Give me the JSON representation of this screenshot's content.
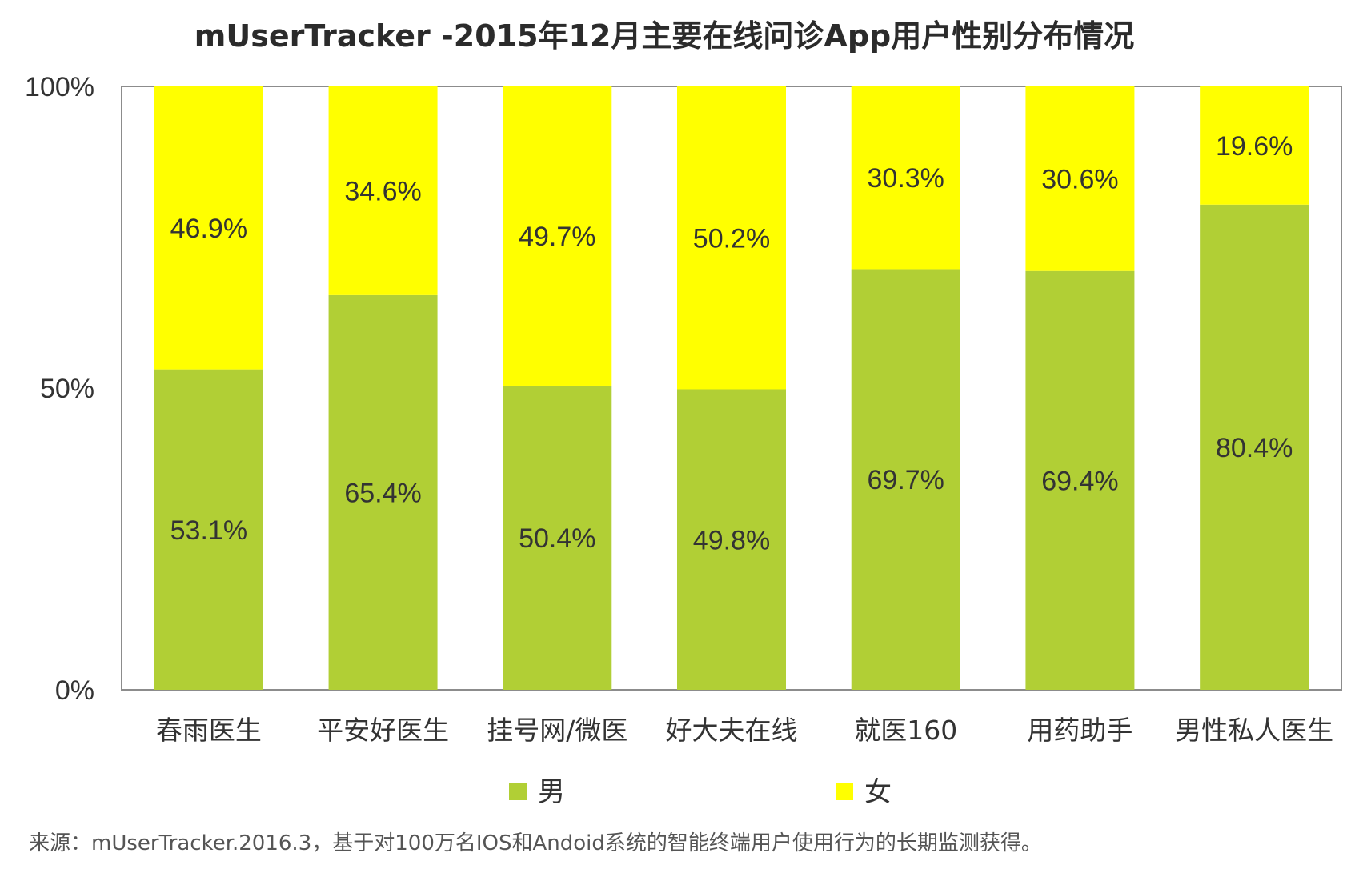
{
  "chart_data": {
    "type": "bar",
    "stacked": true,
    "percent": true,
    "title": "mUserTracker -2015年12月主要在线问诊App用户性别分布情况",
    "categories": [
      "春雨医生",
      "平安好医生",
      "挂号网/微医",
      "好大夫在线",
      "就医160",
      "用药助手",
      "男性私人医生"
    ],
    "series": [
      {
        "name": "男",
        "color": "#b1cf35",
        "values": [
          53.1,
          65.4,
          50.4,
          49.8,
          69.7,
          69.4,
          80.4
        ],
        "labels": [
          "53.1%",
          "65.4%",
          "50.4%",
          "49.8%",
          "69.7%",
          "69.4%",
          "80.4%"
        ]
      },
      {
        "name": "女",
        "color": "#ffff00",
        "values": [
          46.9,
          34.6,
          49.7,
          50.2,
          30.3,
          30.6,
          19.6
        ],
        "labels": [
          "46.9%",
          "34.6%",
          "49.7%",
          "50.2%",
          "30.3%",
          "30.6%",
          "19.6%"
        ]
      }
    ],
    "ylim": [
      0,
      100
    ],
    "yticks": [
      "0%",
      "50%",
      "100%"
    ],
    "grid": false,
    "legend": "bottom-center"
  },
  "source_note": "来源：mUserTracker.2016.3，基于对100万名IOS和Andoid系统的智能终端用户使用行为的长期监测获得。"
}
